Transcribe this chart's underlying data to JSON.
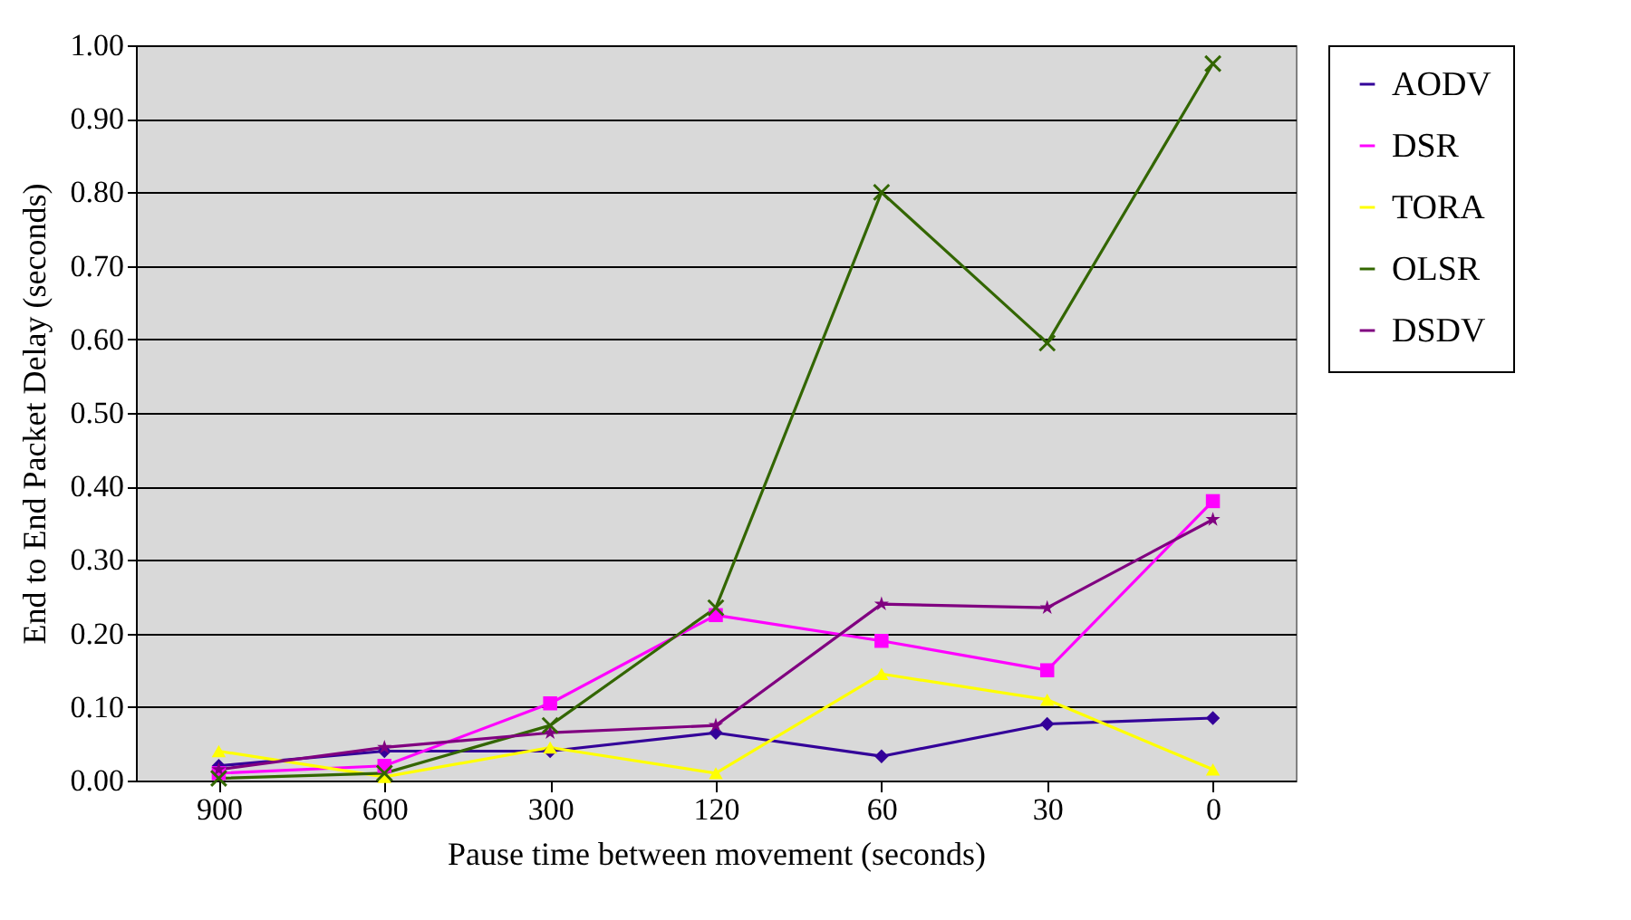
{
  "chart_data": {
    "type": "line",
    "xlabel": "Pause time between movement (seconds)",
    "ylabel": "End to End Packet Delay (seconds)",
    "categories": [
      "900",
      "600",
      "300",
      "120",
      "60",
      "30",
      "0"
    ],
    "series": [
      {
        "name": "AODV",
        "color": "#330099",
        "marker": "diamond",
        "values": [
          0.02,
          0.04,
          0.04,
          0.065,
          0.033,
          0.077,
          0.085
        ]
      },
      {
        "name": "DSR",
        "color": "#ff00ff",
        "marker": "square",
        "values": [
          0.01,
          0.02,
          0.105,
          0.225,
          0.19,
          0.15,
          0.38
        ]
      },
      {
        "name": "TORA",
        "color": "#ffff00",
        "marker": "triangle",
        "values": [
          0.04,
          0.005,
          0.045,
          0.01,
          0.145,
          0.11,
          0.015
        ]
      },
      {
        "name": "OLSR",
        "color": "#336600",
        "marker": "cross",
        "values": [
          0.003,
          0.01,
          0.075,
          0.235,
          0.8,
          0.595,
          0.975
        ]
      },
      {
        "name": "DSDV",
        "color": "#800080",
        "marker": "star",
        "values": [
          0.015,
          0.045,
          0.065,
          0.075,
          0.24,
          0.235,
          0.355
        ]
      }
    ],
    "ylim": [
      0,
      1
    ],
    "yticks": [
      {
        "value": 0,
        "label": "0.00"
      },
      {
        "value": 0.1,
        "label": "0.10"
      },
      {
        "value": 0.2,
        "label": "0.20"
      },
      {
        "value": 0.3,
        "label": "0.30"
      },
      {
        "value": 0.4,
        "label": "0.40"
      },
      {
        "value": 0.5,
        "label": "0.50"
      },
      {
        "value": 0.6,
        "label": "0.60"
      },
      {
        "value": 0.7,
        "label": "0.70"
      },
      {
        "value": 0.8,
        "label": "0.80"
      },
      {
        "value": 0.9,
        "label": "0.90"
      },
      {
        "value": 1,
        "label": "1.00"
      }
    ],
    "grid": "y",
    "legend": "right"
  }
}
